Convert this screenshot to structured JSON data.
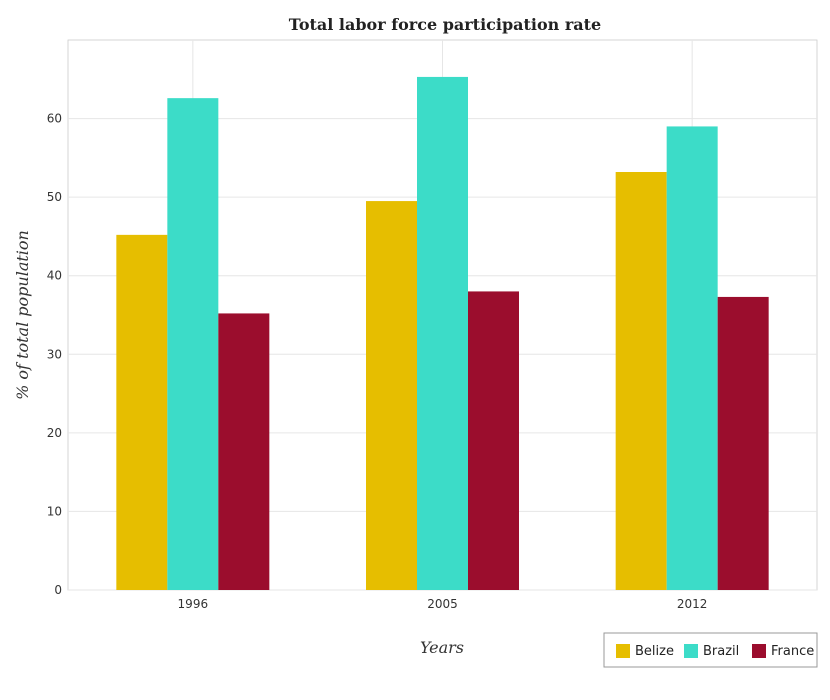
{
  "chart_data": {
    "type": "bar",
    "title": "Total labor force participation rate",
    "xlabel": "Years",
    "ylabel": "% of total population",
    "categories": [
      "1996",
      "2005",
      "2012"
    ],
    "series": [
      {
        "name": "Belize",
        "color": "#e6be00",
        "values": [
          45.2,
          49.5,
          53.2
        ]
      },
      {
        "name": "Brazil",
        "color": "#3cdcc8",
        "values": [
          62.6,
          65.3,
          59.0
        ]
      },
      {
        "name": "France",
        "color": "#9b0d2d",
        "values": [
          35.2,
          38.0,
          37.3
        ]
      }
    ],
    "ylim": [
      0,
      70
    ],
    "yticks": [
      0,
      10,
      20,
      30,
      40,
      50,
      60
    ],
    "grid": true,
    "legend_position": "bottom-right"
  }
}
